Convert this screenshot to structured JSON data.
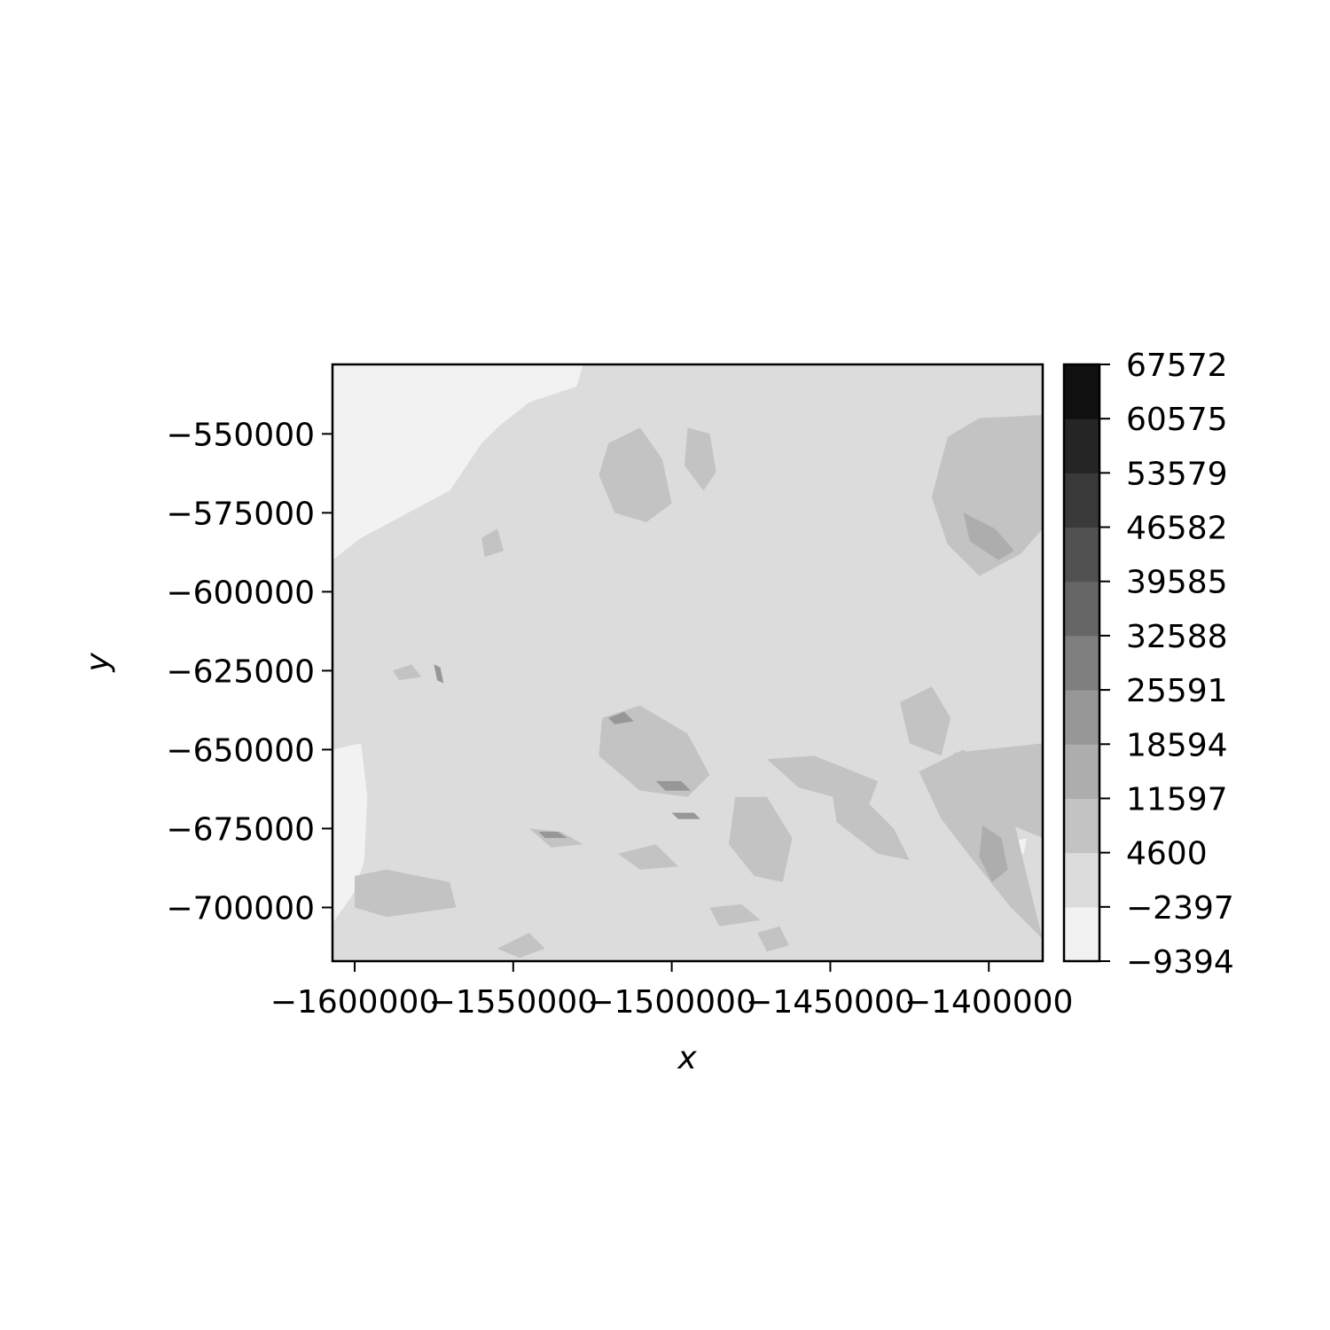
{
  "chart_data": {
    "type": "heatmap",
    "subtype": "filled-contour",
    "title": "",
    "xlabel": "x",
    "ylabel": "y",
    "xlim": [
      -1607000,
      -1383000
    ],
    "ylim": [
      -717000,
      -528000
    ],
    "x_ticks": [
      -1600000,
      -1550000,
      -1500000,
      -1450000,
      -1400000
    ],
    "x_tick_labels": [
      "−1600000",
      "−1550000",
      "−1500000",
      "−1450000",
      "−1400000"
    ],
    "y_ticks": [
      -550000,
      -575000,
      -600000,
      -625000,
      -650000,
      -675000,
      -700000
    ],
    "y_tick_labels": [
      "−550000",
      "−575000",
      "−600000",
      "−625000",
      "−650000",
      "−675000",
      "−700000"
    ],
    "colorbar": {
      "levels": [
        -9394,
        -2397,
        4600,
        11597,
        18594,
        25591,
        32588,
        39585,
        46582,
        53579,
        60575,
        67572
      ],
      "level_labels": [
        "−9394",
        "−2397",
        "4600",
        "11597",
        "18594",
        "25591",
        "32588",
        "39585",
        "46582",
        "53579",
        "60575",
        "67572"
      ],
      "colors": [
        "#f2f2f2",
        "#dcdcdc",
        "#c3c3c3",
        "#adadad",
        "#979797",
        "#7f7f7f",
        "#666666",
        "#515151",
        "#3a3a3a",
        "#252525",
        "#101010"
      ]
    },
    "colormap": "Greys",
    "background_level_value": 0,
    "regions": [
      {
        "level_index": 0,
        "points": [
          [
            -1607000,
            -528000
          ],
          [
            -1528000,
            -528000
          ],
          [
            -1530000,
            -535000
          ],
          [
            -1545000,
            -540000
          ],
          [
            -1555000,
            -548000
          ],
          [
            -1560000,
            -553000
          ],
          [
            -1570000,
            -568000
          ],
          [
            -1585000,
            -576000
          ],
          [
            -1598000,
            -583000
          ],
          [
            -1607000,
            -590000
          ]
        ]
      },
      {
        "level_index": 0,
        "points": [
          [
            -1607000,
            -650000
          ],
          [
            -1598000,
            -648000
          ],
          [
            -1596000,
            -665000
          ],
          [
            -1597000,
            -685000
          ],
          [
            -1600000,
            -695000
          ],
          [
            -1607000,
            -705000
          ]
        ]
      },
      {
        "level_index": 0,
        "points": [
          [
            -1520000,
            -563000
          ],
          [
            -1512000,
            -560000
          ],
          [
            -1505000,
            -566000
          ],
          [
            -1510000,
            -572000
          ],
          [
            -1519000,
            -570000
          ]
        ]
      },
      {
        "level_index": 0,
        "points": [
          [
            -1395000,
            -680000
          ],
          [
            -1388000,
            -678000
          ],
          [
            -1389000,
            -683000
          ],
          [
            -1395000,
            -684000
          ]
        ]
      },
      {
        "level_index": 2,
        "points": [
          [
            -1520000,
            -553000
          ],
          [
            -1510000,
            -548000
          ],
          [
            -1503000,
            -558000
          ],
          [
            -1500000,
            -572000
          ],
          [
            -1508000,
            -578000
          ],
          [
            -1518000,
            -575000
          ],
          [
            -1523000,
            -563000
          ]
        ]
      },
      {
        "level_index": 2,
        "points": [
          [
            -1495000,
            -548000
          ],
          [
            -1488000,
            -550000
          ],
          [
            -1486000,
            -562000
          ],
          [
            -1490000,
            -568000
          ],
          [
            -1496000,
            -560000
          ]
        ]
      },
      {
        "level_index": 2,
        "points": [
          [
            -1413000,
            -551000
          ],
          [
            -1403000,
            -545000
          ],
          [
            -1383000,
            -544000
          ],
          [
            -1383000,
            -580000
          ],
          [
            -1390000,
            -588000
          ],
          [
            -1403000,
            -595000
          ],
          [
            -1413000,
            -585000
          ],
          [
            -1418000,
            -570000
          ]
        ]
      },
      {
        "level_index": 3,
        "points": [
          [
            -1408000,
            -575000
          ],
          [
            -1398000,
            -580000
          ],
          [
            -1392000,
            -587000
          ],
          [
            -1397000,
            -590000
          ],
          [
            -1406000,
            -584000
          ]
        ]
      },
      {
        "level_index": 2,
        "points": [
          [
            -1522000,
            -640000
          ],
          [
            -1510000,
            -636000
          ],
          [
            -1495000,
            -645000
          ],
          [
            -1488000,
            -658000
          ],
          [
            -1495000,
            -665000
          ],
          [
            -1510000,
            -663000
          ],
          [
            -1523000,
            -652000
          ]
        ]
      },
      {
        "level_index": 2,
        "points": [
          [
            -1480000,
            -665000
          ],
          [
            -1470000,
            -665000
          ],
          [
            -1462000,
            -678000
          ],
          [
            -1465000,
            -692000
          ],
          [
            -1474000,
            -690000
          ],
          [
            -1482000,
            -680000
          ]
        ]
      },
      {
        "level_index": 2,
        "points": [
          [
            -1450000,
            -660000
          ],
          [
            -1440000,
            -665000
          ],
          [
            -1430000,
            -675000
          ],
          [
            -1425000,
            -685000
          ],
          [
            -1435000,
            -683000
          ],
          [
            -1448000,
            -673000
          ]
        ]
      },
      {
        "level_index": 2,
        "points": [
          [
            -1422000,
            -657000
          ],
          [
            -1408000,
            -650000
          ],
          [
            -1395000,
            -660000
          ],
          [
            -1388000,
            -690000
          ],
          [
            -1383000,
            -710000
          ],
          [
            -1393000,
            -700000
          ],
          [
            -1405000,
            -685000
          ],
          [
            -1415000,
            -672000
          ]
        ]
      },
      {
        "level_index": 3,
        "points": [
          [
            -1402000,
            -674000
          ],
          [
            -1396000,
            -678000
          ],
          [
            -1394000,
            -688000
          ],
          [
            -1399000,
            -692000
          ],
          [
            -1403000,
            -684000
          ]
        ]
      },
      {
        "level_index": 2,
        "points": [
          [
            -1411000,
            -651000
          ],
          [
            -1383000,
            -648000
          ],
          [
            -1383000,
            -678000
          ],
          [
            -1395000,
            -673000
          ],
          [
            -1407000,
            -663000
          ]
        ]
      },
      {
        "level_index": 2,
        "points": [
          [
            -1428000,
            -635000
          ],
          [
            -1418000,
            -630000
          ],
          [
            -1412000,
            -640000
          ],
          [
            -1415000,
            -652000
          ],
          [
            -1425000,
            -648000
          ]
        ]
      },
      {
        "level_index": 2,
        "points": [
          [
            -1470000,
            -653000
          ],
          [
            -1455000,
            -652000
          ],
          [
            -1435000,
            -660000
          ],
          [
            -1438000,
            -668000
          ],
          [
            -1460000,
            -662000
          ]
        ]
      },
      {
        "level_index": 2,
        "points": [
          [
            -1600000,
            -690000
          ],
          [
            -1590000,
            -688000
          ],
          [
            -1570000,
            -692000
          ],
          [
            -1568000,
            -700000
          ],
          [
            -1590000,
            -703000
          ],
          [
            -1600000,
            -700000
          ]
        ]
      },
      {
        "level_index": 2,
        "points": [
          [
            -1555000,
            -713000
          ],
          [
            -1545000,
            -708000
          ],
          [
            -1540000,
            -713000
          ],
          [
            -1548000,
            -716000
          ]
        ]
      },
      {
        "level_index": 2,
        "points": [
          [
            -1488000,
            -700000
          ],
          [
            -1478000,
            -699000
          ],
          [
            -1472000,
            -704000
          ],
          [
            -1485000,
            -706000
          ]
        ]
      },
      {
        "level_index": 2,
        "points": [
          [
            -1473000,
            -708000
          ],
          [
            -1466000,
            -706000
          ],
          [
            -1463000,
            -712000
          ],
          [
            -1470000,
            -714000
          ]
        ]
      },
      {
        "level_index": 2,
        "points": [
          [
            -1588000,
            -625000
          ],
          [
            -1582000,
            -623000
          ],
          [
            -1579000,
            -627000
          ],
          [
            -1586000,
            -628000
          ]
        ]
      },
      {
        "level_index": 2,
        "points": [
          [
            -1560000,
            -583000
          ],
          [
            -1555000,
            -580000
          ],
          [
            -1553000,
            -587000
          ],
          [
            -1559000,
            -589000
          ]
        ]
      },
      {
        "level_index": 2,
        "points": [
          [
            -1517000,
            -683000
          ],
          [
            -1505000,
            -680000
          ],
          [
            -1498000,
            -687000
          ],
          [
            -1510000,
            -688000
          ]
        ]
      },
      {
        "level_index": 2,
        "points": [
          [
            -1545000,
            -675000
          ],
          [
            -1535000,
            -676000
          ],
          [
            -1528000,
            -680000
          ],
          [
            -1538000,
            -681000
          ]
        ]
      },
      {
        "level_index": 4,
        "points": [
          [
            -1575000,
            -623000
          ],
          [
            -1573000,
            -624000
          ],
          [
            -1572000,
            -629000
          ],
          [
            -1574000,
            -628000
          ]
        ]
      },
      {
        "level_index": 4,
        "points": [
          [
            -1520000,
            -640000
          ],
          [
            -1515000,
            -638000
          ],
          [
            -1512000,
            -641000
          ],
          [
            -1518000,
            -642000
          ]
        ]
      },
      {
        "level_index": 4,
        "points": [
          [
            -1505000,
            -660000
          ],
          [
            -1497000,
            -660000
          ],
          [
            -1494000,
            -663000
          ],
          [
            -1502000,
            -663000
          ]
        ]
      },
      {
        "level_index": 4,
        "points": [
          [
            -1500000,
            -670000
          ],
          [
            -1493000,
            -670000
          ],
          [
            -1491000,
            -672000
          ],
          [
            -1498000,
            -672000
          ]
        ]
      },
      {
        "level_index": 4,
        "points": [
          [
            -1542000,
            -676000
          ],
          [
            -1536000,
            -676000
          ],
          [
            -1533000,
            -678000
          ],
          [
            -1540000,
            -678000
          ]
        ]
      }
    ]
  }
}
